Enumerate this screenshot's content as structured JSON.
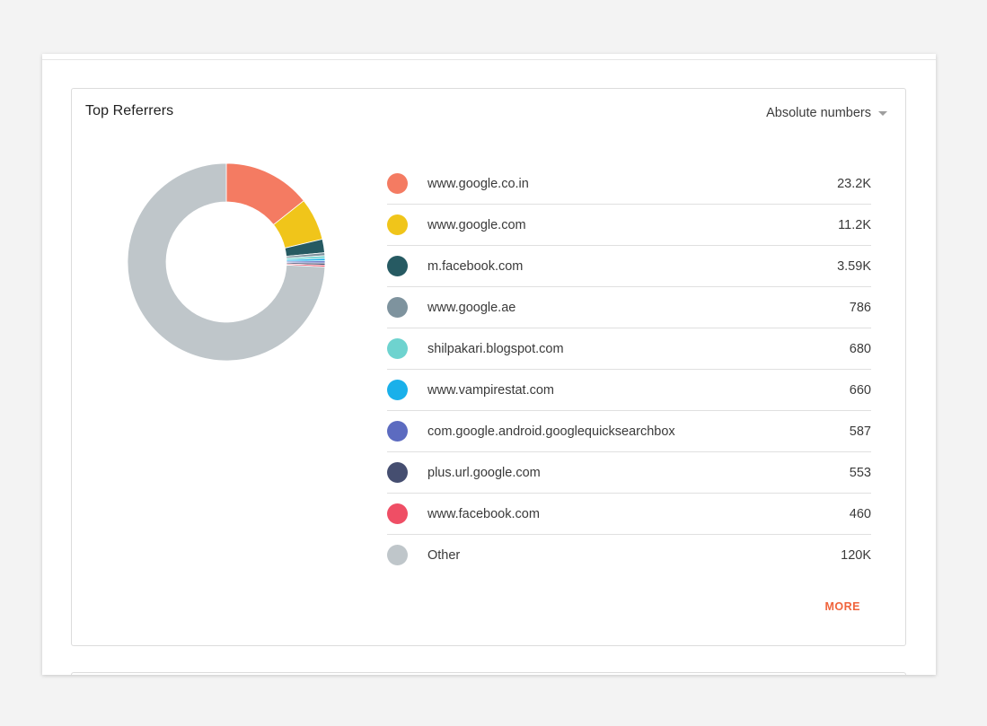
{
  "card": {
    "title": "Top Referrers",
    "metric_selector": "Absolute numbers",
    "more_label": "MORE"
  },
  "chart_data": {
    "type": "pie",
    "style": "donut",
    "title": "Top Referrers",
    "categories": [
      "www.google.co.in",
      "www.google.com",
      "m.facebook.com",
      "www.google.ae",
      "shilpakari.blogspot.com",
      "www.vampirestat.com",
      "com.google.android.googlequicksearchbox",
      "plus.url.google.com",
      "www.facebook.com",
      "Other"
    ],
    "values": [
      23200,
      11200,
      3590,
      786,
      680,
      660,
      587,
      553,
      460,
      120000
    ],
    "display_values": [
      "23.2K",
      "11.2K",
      "3.59K",
      "786",
      "680",
      "660",
      "587",
      "553",
      "460",
      "120K"
    ],
    "colors": [
      "#f47b62",
      "#f0c51a",
      "#265a62",
      "#7e939e",
      "#6ed3cf",
      "#1ab0ea",
      "#5c6bc0",
      "#454e70",
      "#ef4e65",
      "#bfc6ca"
    ]
  }
}
